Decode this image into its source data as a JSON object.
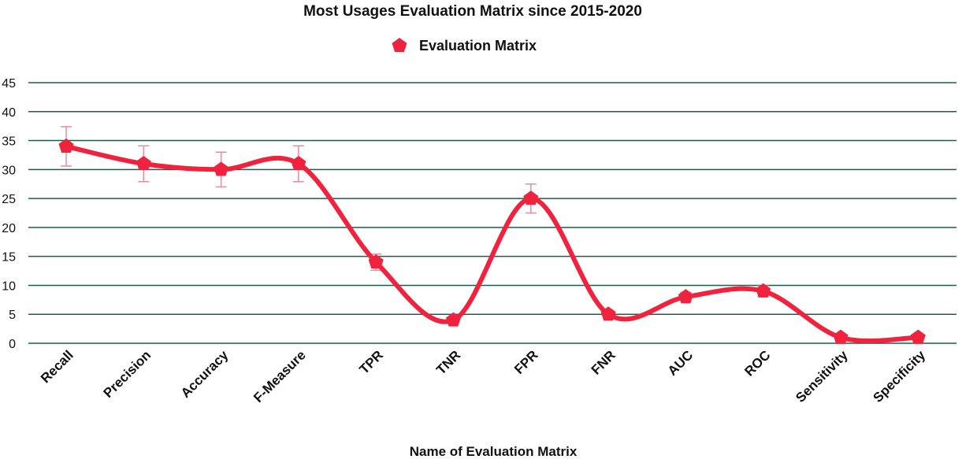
{
  "chart_data": {
    "type": "line",
    "title": "Most Usages Evaluation Matrix since 2015-2020",
    "xlabel": "Name of Evaluation Matrix",
    "ylabel": "",
    "categories": [
      "Recall",
      "Precision",
      "Accuracy",
      "F-Measure",
      "TPR",
      "TNR",
      "FPR",
      "FNR",
      "AUC",
      "ROC",
      "Sensitivity",
      "Specificity"
    ],
    "series": [
      {
        "name": "Evaluation Matrix",
        "values": [
          34,
          31,
          30,
          31,
          14,
          4,
          25,
          5,
          8,
          9,
          1,
          1
        ],
        "error": [
          3.4,
          3.1,
          3.0,
          3.1,
          1.4,
          0.4,
          2.5,
          0.5,
          0.8,
          0.9,
          0.1,
          0.1
        ],
        "color": "#f0233f",
        "marker": "pentagon"
      }
    ],
    "ylim": [
      0,
      45
    ],
    "yticks": [
      0,
      5,
      10,
      15,
      20,
      25,
      30,
      35,
      40,
      45
    ],
    "grid": true,
    "grid_color": "#1e5c4c",
    "error_bar_color": "#e88aa0",
    "legend_position": "top-center",
    "smooth": true
  }
}
